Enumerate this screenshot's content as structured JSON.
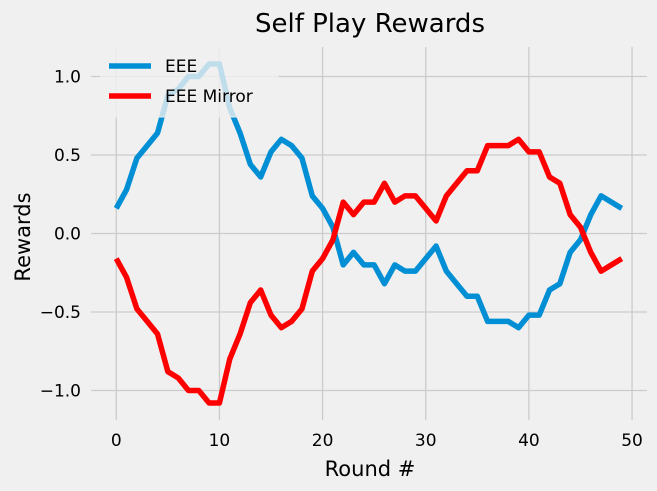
{
  "chart_data": {
    "type": "line",
    "title": "Self Play Rewards",
    "xlabel": "Round #",
    "ylabel": "Rewards",
    "xlim": [
      -2.45,
      51.45
    ],
    "ylim": [
      -1.188,
      1.188
    ],
    "grid": true,
    "legend_position": "top-left",
    "background": "#f0f0f0",
    "xticks": [
      0,
      10,
      20,
      30,
      40,
      50
    ],
    "yticks": [
      -1.0,
      -0.5,
      0.0,
      0.5,
      1.0
    ],
    "xtick_labels": [
      "0",
      "10",
      "20",
      "30",
      "40",
      "50"
    ],
    "ytick_labels": [
      "−1.0",
      "−0.5",
      "0.0",
      "0.5",
      "1.0"
    ],
    "x": [
      0,
      1,
      2,
      3,
      4,
      5,
      6,
      7,
      8,
      9,
      10,
      11,
      12,
      13,
      14,
      15,
      16,
      17,
      18,
      19,
      20,
      21,
      22,
      23,
      24,
      25,
      26,
      27,
      28,
      29,
      30,
      31,
      32,
      33,
      34,
      35,
      36,
      37,
      38,
      39,
      40,
      41,
      42,
      43,
      44,
      45,
      46,
      47,
      48,
      49
    ],
    "series": [
      {
        "name": "EEE",
        "color": "#008fd5",
        "values": [
          0.16,
          0.28,
          0.48,
          0.56,
          0.64,
          0.88,
          0.92,
          1.0,
          1.0,
          1.08,
          1.08,
          0.8,
          0.64,
          0.44,
          0.36,
          0.52,
          0.6,
          0.56,
          0.48,
          0.24,
          0.16,
          0.04,
          -0.2,
          -0.12,
          -0.2,
          -0.2,
          -0.32,
          -0.2,
          -0.24,
          -0.24,
          -0.16,
          -0.08,
          -0.24,
          -0.32,
          -0.4,
          -0.4,
          -0.56,
          -0.56,
          -0.56,
          -0.6,
          -0.52,
          -0.52,
          -0.36,
          -0.32,
          -0.12,
          -0.04,
          0.12,
          0.24,
          0.2,
          0.16
        ]
      },
      {
        "name": "EEE Mirror",
        "color": "#ff0000",
        "values": [
          -0.16,
          -0.28,
          -0.48,
          -0.56,
          -0.64,
          -0.88,
          -0.92,
          -1.0,
          -1.0,
          -1.08,
          -1.08,
          -0.8,
          -0.64,
          -0.44,
          -0.36,
          -0.52,
          -0.6,
          -0.56,
          -0.48,
          -0.24,
          -0.16,
          -0.04,
          0.2,
          0.12,
          0.2,
          0.2,
          0.32,
          0.2,
          0.24,
          0.24,
          0.16,
          0.08,
          0.24,
          0.32,
          0.4,
          0.4,
          0.56,
          0.56,
          0.56,
          0.6,
          0.52,
          0.52,
          0.36,
          0.32,
          0.12,
          0.04,
          -0.12,
          -0.24,
          -0.2,
          -0.16
        ]
      }
    ]
  }
}
